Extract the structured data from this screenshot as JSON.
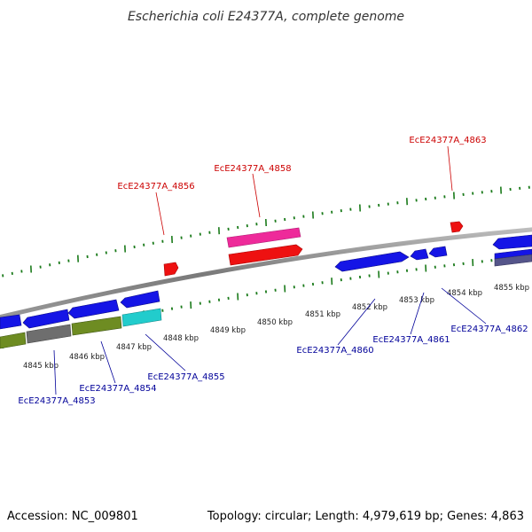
{
  "header": {
    "title": "Escherichia coli E24377A, complete genome"
  },
  "footer": {
    "accession": "Accession: NC_009801",
    "summary": "Topology: circular; Length: 4,979,619 bp; Genes: 4,863"
  },
  "scale": {
    "ticks": [
      "4845 kbp",
      "4846 kbp",
      "4847 kbp",
      "4848 kbp",
      "4849 kbp",
      "4850 kbp",
      "4851 kbp",
      "4852 kbp",
      "4853 kbp",
      "4854 kbp",
      "4855 kbp"
    ]
  },
  "genes_forward": [
    "EcE24377A_4856",
    "EcE24377A_4858",
    "EcE24377A_4863"
  ],
  "genes_reverse": [
    "EcE24377A_4853",
    "EcE24377A_4854",
    "EcE24377A_4855",
    "EcE24377A_4860",
    "EcE24377A_4861",
    "EcE24377A_4862"
  ],
  "colors": {
    "forward_label": "#cc0000",
    "reverse_label": "#000099",
    "backbone": "#888888",
    "tick": "#1a7a1a",
    "cds_blue": "#1515e6",
    "cds_red": "#ee1111",
    "cds_pink": "#ee2a9a",
    "cds_olive": "#6e8c22",
    "cds_gray": "#6e6e6e",
    "cds_cyan": "#22cccc",
    "cds_slate": "#55558a"
  }
}
